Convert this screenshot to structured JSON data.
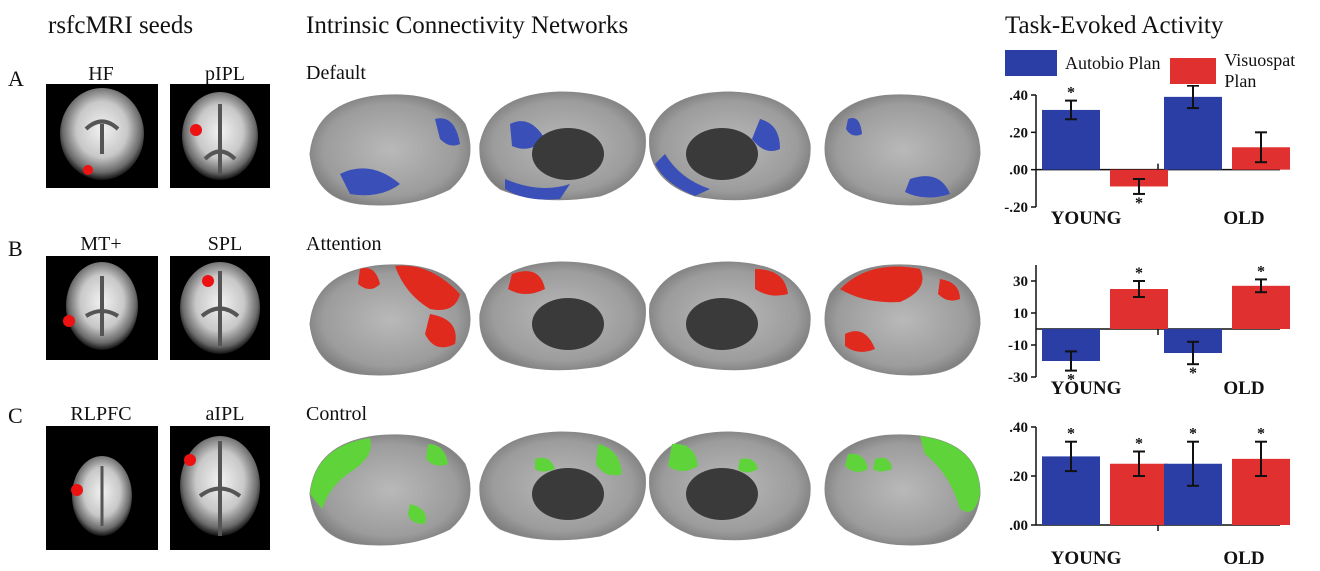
{
  "headers": {
    "seeds": "rsfcMRI seeds",
    "networks": "Intrinsic Connectivity Networks",
    "task": "Task-Evoked Activity"
  },
  "legend": {
    "autobio": "Autobio Plan",
    "visuospat": "Visuospat Plan",
    "autobio_color": "#2a3ea6",
    "visuospat_color": "#e03030"
  },
  "rows": [
    {
      "letter": "A",
      "seed1": "HF",
      "seed2": "pIPL",
      "network": "Default",
      "net_color": "#3a4fb8"
    },
    {
      "letter": "B",
      "seed1": "MT+",
      "seed2": "SPL",
      "network": "Attention",
      "net_color": "#e02a1e"
    },
    {
      "letter": "C",
      "seed1": "RLPFC",
      "seed2": "aIPL",
      "network": "Control",
      "net_color": "#5ed43a"
    }
  ],
  "chart_data": [
    {
      "type": "bar",
      "categories": [
        "YOUNG",
        "OLD"
      ],
      "series": [
        {
          "name": "Autobio Plan",
          "values": [
            0.32,
            0.39
          ],
          "errors": [
            0.05,
            0.06
          ],
          "sig": [
            true,
            true
          ]
        },
        {
          "name": "Visuospat Plan",
          "values": [
            -0.09,
            0.12
          ],
          "errors": [
            0.04,
            0.08
          ],
          "sig": [
            true,
            false
          ]
        }
      ],
      "ylim": [
        -0.2,
        0.4
      ],
      "yticks": [
        -0.2,
        0.0,
        0.2,
        0.4
      ],
      "ytick_labels": [
        "-.20",
        ".00",
        ".20",
        ".40"
      ]
    },
    {
      "type": "bar",
      "categories": [
        "YOUNG",
        "OLD"
      ],
      "series": [
        {
          "name": "Autobio Plan",
          "values": [
            -0.2,
            -0.15
          ],
          "errors": [
            0.06,
            0.07
          ],
          "sig": [
            true,
            true
          ]
        },
        {
          "name": "Visuospat Plan",
          "values": [
            0.25,
            0.27
          ],
          "errors": [
            0.05,
            0.04
          ],
          "sig": [
            true,
            true
          ]
        }
      ],
      "ylim": [
        -0.3,
        0.4
      ],
      "yticks": [
        -0.3,
        -0.1,
        0.1,
        0.3
      ],
      "ytick_labels": [
        "-30",
        "-10",
        "10",
        "30"
      ]
    },
    {
      "type": "bar",
      "categories": [
        "YOUNG",
        "OLD"
      ],
      "series": [
        {
          "name": "Autobio Plan",
          "values": [
            0.28,
            0.25
          ],
          "errors": [
            0.06,
            0.09
          ],
          "sig": [
            true,
            true
          ]
        },
        {
          "name": "Visuospat Plan",
          "values": [
            0.25,
            0.27
          ],
          "errors": [
            0.05,
            0.07
          ],
          "sig": [
            true,
            true
          ]
        }
      ],
      "ylim": [
        0.0,
        0.4
      ],
      "yticks": [
        0.0,
        0.2,
        0.4
      ],
      "ytick_labels": [
        ".00",
        ".20",
        ".40"
      ]
    }
  ]
}
